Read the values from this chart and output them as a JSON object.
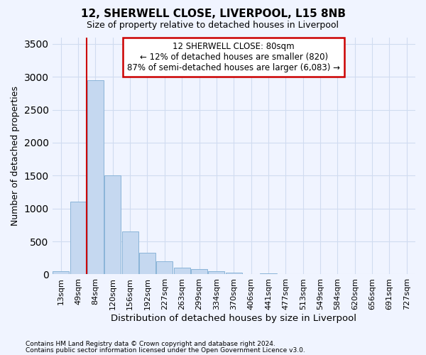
{
  "title1": "12, SHERWELL CLOSE, LIVERPOOL, L15 8NB",
  "title2": "Size of property relative to detached houses in Liverpool",
  "xlabel": "Distribution of detached houses by size in Liverpool",
  "ylabel": "Number of detached properties",
  "categories": [
    "13sqm",
    "49sqm",
    "84sqm",
    "120sqm",
    "156sqm",
    "192sqm",
    "227sqm",
    "263sqm",
    "299sqm",
    "334sqm",
    "370sqm",
    "406sqm",
    "441sqm",
    "477sqm",
    "513sqm",
    "549sqm",
    "584sqm",
    "620sqm",
    "656sqm",
    "691sqm",
    "727sqm"
  ],
  "values": [
    50,
    1100,
    2950,
    1500,
    650,
    330,
    200,
    100,
    80,
    50,
    30,
    0,
    20,
    0,
    0,
    0,
    0,
    0,
    0,
    0,
    0
  ],
  "bar_color": "#c5d8f0",
  "bar_edge_color": "#8ab4d8",
  "vline_color": "#cc0000",
  "annotation_line1": "12 SHERWELL CLOSE: 80sqm",
  "annotation_line2": "← 12% of detached houses are smaller (820)",
  "annotation_line3": "87% of semi-detached houses are larger (6,083) →",
  "annotation_box_edge": "#cc0000",
  "bg_color": "#f0f4ff",
  "grid_color": "#d0dcf0",
  "ylim": [
    0,
    3600
  ],
  "footer1": "Contains HM Land Registry data © Crown copyright and database right 2024.",
  "footer2": "Contains public sector information licensed under the Open Government Licence v3.0."
}
